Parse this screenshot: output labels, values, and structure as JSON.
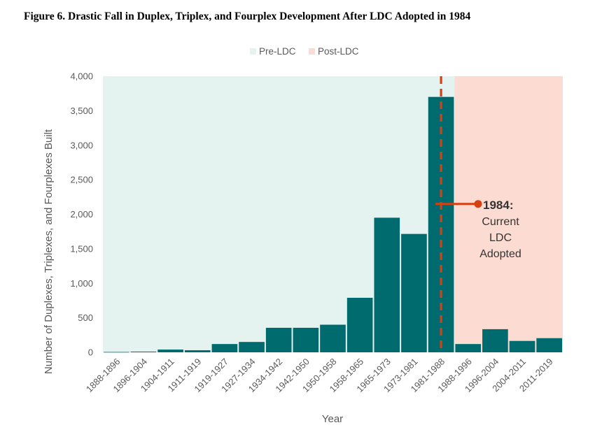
{
  "figure_title": "Figure 6. Drastic Fall in Duplex, Triplex, and Fourplex Development After LDC Adopted in 1984",
  "colors": {
    "bar": "#006b6f",
    "pre_region": "#e5f3f0",
    "post_region": "#fcdcd2",
    "marker": "#d9400f",
    "axis_text": "#595959"
  },
  "chart_data": {
    "type": "bar",
    "title": "Figure 6. Drastic Fall in Duplex, Triplex, and Fourplex Development After LDC Adopted in 1984",
    "xlabel": "Year",
    "ylabel": "Number of Duplexes, Triplexes, and Fourplexes Built",
    "ylim": [
      0,
      4000
    ],
    "yticks": [
      0,
      500,
      1000,
      1500,
      2000,
      2500,
      3000,
      3500,
      4000
    ],
    "ytick_labels": [
      "0",
      "500",
      "1,000",
      "1,500",
      "2,000",
      "2,500",
      "3,000",
      "3,500",
      "4,000"
    ],
    "categories": [
      "1888-1896",
      "1896-1904",
      "1904-1911",
      "1911-1919",
      "1919-1927",
      "1927-1934",
      "1934-1942",
      "1942-1950",
      "1950-1958",
      "1958-1965",
      "1965-1973",
      "1973-1981",
      "1981-1988",
      "1988-1996",
      "1996-2004",
      "2004-2011",
      "2011-2019"
    ],
    "values": [
      5,
      10,
      40,
      30,
      120,
      150,
      355,
      355,
      400,
      790,
      1950,
      1715,
      3700,
      120,
      335,
      165,
      205
    ],
    "legend": [
      {
        "label": "Pre-LDC",
        "color": "#e5f3f0",
        "categories_from": 0,
        "categories_to": 12
      },
      {
        "label": "Post-LDC",
        "color": "#fcdcd2",
        "categories_from": 13,
        "categories_to": 16
      }
    ],
    "legend_position": "top-center",
    "grid": false,
    "annotation": {
      "bold_text": "1984:",
      "lines": [
        "Current",
        "LDC",
        "Adopted"
      ],
      "marker_category": "1981-1988",
      "marker_value": 2150
    }
  }
}
